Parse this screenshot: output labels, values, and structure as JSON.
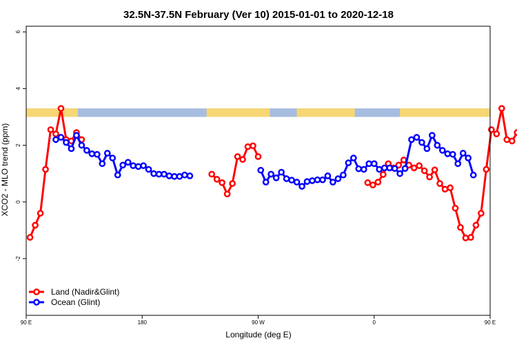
{
  "chart_data": {
    "type": "line",
    "title": "32.5N-37.5N February (Ver 10)   2015-01-01 to 2020-12-18",
    "xlabel": "Longitude (deg E)",
    "ylabel": "XCO2 - MLO trend (ppm)",
    "xlim": [
      90,
      450
    ],
    "ylim": [
      -4,
      6.2
    ],
    "x_ticks": [
      {
        "value": 90,
        "label": "90 E"
      },
      {
        "value": 180,
        "label": "180"
      },
      {
        "value": 270,
        "label": "90 W"
      },
      {
        "value": 360,
        "label": "0"
      },
      {
        "value": 450,
        "label": "90 E"
      },
      {
        "value": 540,
        "label": "180"
      }
    ],
    "y_ticks": [
      {
        "value": -2,
        "label": "-2"
      },
      {
        "value": 0,
        "label": "0"
      },
      {
        "value": 2,
        "label": "2"
      },
      {
        "value": 4,
        "label": "4"
      },
      {
        "value": 6,
        "label": "6"
      }
    ],
    "legend": {
      "placement": "bottom-left"
    },
    "landmask": {
      "y_range": [
        3.0,
        3.3
      ],
      "land_color": "#f7d774",
      "ocean_color": "#a7bde0",
      "land_spans": [
        [
          90,
          130
        ],
        [
          230,
          279
        ],
        [
          300,
          345
        ],
        [
          380,
          470
        ],
        [
          490,
          500
        ]
      ]
    },
    "series": [
      {
        "name": "Land (Nadir&Glint)",
        "color": "#ff0000",
        "segments": [
          [
            [
              93,
              -1.25
            ],
            [
              97,
              -0.82
            ],
            [
              101,
              -0.4
            ],
            [
              105,
              1.15
            ],
            [
              109,
              2.55
            ],
            [
              113,
              2.4
            ],
            [
              117,
              3.3
            ],
            [
              121,
              2.2
            ],
            [
              125,
              2.15
            ],
            [
              129,
              2.45
            ],
            [
              133,
              2.2
            ]
          ],
          [
            [
              234,
              0.98
            ],
            [
              238,
              0.8
            ],
            [
              242,
              0.68
            ],
            [
              246,
              0.28
            ],
            [
              250,
              0.65
            ],
            [
              254,
              1.6
            ],
            [
              258,
              1.5
            ],
            [
              262,
              1.95
            ],
            [
              266,
              1.98
            ],
            [
              270,
              1.6
            ]
          ],
          [
            [
              355,
              0.68
            ],
            [
              359,
              0.6
            ],
            [
              363,
              0.7
            ],
            [
              367,
              0.97
            ],
            [
              371,
              1.35
            ],
            [
              375,
              1.2
            ],
            [
              379,
              1.3
            ],
            [
              383,
              1.48
            ],
            [
              387,
              1.3
            ],
            [
              391,
              1.2
            ],
            [
              395,
              1.28
            ],
            [
              399,
              1.1
            ],
            [
              403,
              0.88
            ],
            [
              407,
              1.13
            ],
            [
              411,
              0.65
            ],
            [
              415,
              0.45
            ],
            [
              419,
              0.5
            ],
            [
              423,
              -0.22
            ],
            [
              427,
              -0.9
            ],
            [
              431,
              -1.27
            ],
            [
              435,
              -1.25
            ],
            [
              439,
              -0.82
            ],
            [
              443,
              -0.4
            ],
            [
              447,
              1.15
            ],
            [
              451,
              2.55
            ],
            [
              455,
              2.4
            ],
            [
              459,
              3.3
            ],
            [
              463,
              2.2
            ],
            [
              467,
              2.15
            ],
            [
              471,
              2.45
            ],
            [
              475,
              2.2
            ]
          ]
        ]
      },
      {
        "name": "Ocean (Glint)",
        "color": "#0000ff",
        "segments": [
          [
            [
              113,
              2.2
            ],
            [
              117,
              2.28
            ],
            [
              121,
              2.1
            ],
            [
              125,
              1.88
            ],
            [
              129,
              2.35
            ],
            [
              133,
              2.0
            ],
            [
              137,
              1.82
            ],
            [
              141,
              1.7
            ],
            [
              145,
              1.68
            ],
            [
              149,
              1.35
            ],
            [
              153,
              1.72
            ],
            [
              157,
              1.55
            ],
            [
              161,
              0.95
            ],
            [
              165,
              1.3
            ],
            [
              169,
              1.4
            ],
            [
              173,
              1.28
            ],
            [
              177,
              1.25
            ],
            [
              181,
              1.28
            ],
            [
              185,
              1.15
            ],
            [
              189,
              1.0
            ],
            [
              193,
              0.98
            ],
            [
              197,
              0.98
            ],
            [
              201,
              0.92
            ],
            [
              205,
              0.9
            ],
            [
              209,
              0.9
            ],
            [
              213,
              0.95
            ],
            [
              217,
              0.92
            ]
          ],
          [
            [
              272,
              1.12
            ],
            [
              276,
              0.7
            ],
            [
              280,
              0.98
            ],
            [
              284,
              0.85
            ],
            [
              288,
              1.05
            ],
            [
              292,
              0.82
            ],
            [
              296,
              0.77
            ],
            [
              300,
              0.7
            ],
            [
              304,
              0.55
            ],
            [
              308,
              0.72
            ],
            [
              312,
              0.75
            ],
            [
              316,
              0.78
            ],
            [
              320,
              0.78
            ],
            [
              324,
              0.92
            ],
            [
              328,
              0.7
            ],
            [
              332,
              0.82
            ],
            [
              336,
              0.95
            ],
            [
              340,
              1.38
            ],
            [
              344,
              1.55
            ],
            [
              348,
              1.17
            ],
            [
              352,
              1.15
            ],
            [
              356,
              1.35
            ],
            [
              360,
              1.35
            ],
            [
              364,
              1.15
            ],
            [
              368,
              1.2
            ],
            [
              372,
              1.2
            ],
            [
              376,
              1.18
            ],
            [
              380,
              1.0
            ],
            [
              384,
              1.18
            ],
            [
              389,
              2.2
            ],
            [
              393,
              2.28
            ],
            [
              397,
              2.1
            ],
            [
              401,
              1.88
            ],
            [
              405,
              2.35
            ],
            [
              409,
              2.0
            ],
            [
              413,
              1.82
            ],
            [
              417,
              1.7
            ],
            [
              421,
              1.68
            ],
            [
              425,
              1.35
            ],
            [
              429,
              1.72
            ],
            [
              433,
              1.55
            ],
            [
              437,
              0.95
            ]
          ]
        ]
      }
    ]
  }
}
